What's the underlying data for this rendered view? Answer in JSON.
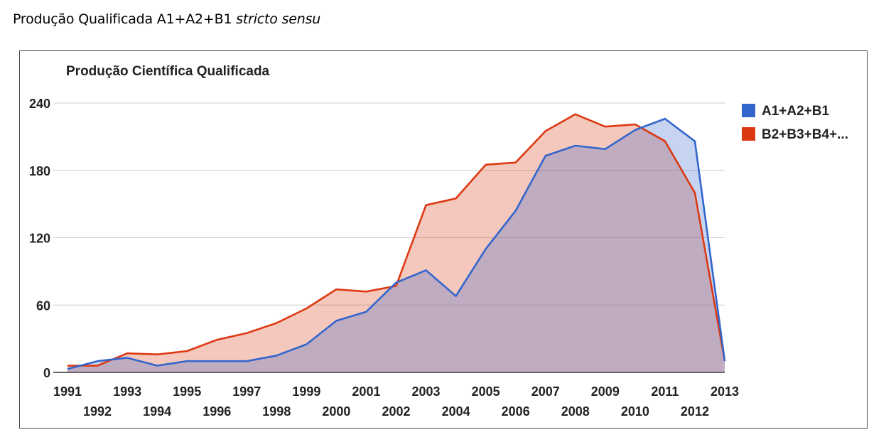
{
  "page": {
    "title_main": "Produção Qualificada A1+A2+B1 ",
    "title_italic": "stricto sensu"
  },
  "colors": {
    "series_a": "#3366cc",
    "series_b": "#dc3912",
    "grid": "#cccccc"
  },
  "chart_data": {
    "type": "area",
    "title": "Produção Científica Qualificada",
    "xlabel": "",
    "ylabel": "",
    "x": [
      1991,
      1992,
      1993,
      1994,
      1995,
      1996,
      1997,
      1998,
      1999,
      2000,
      2001,
      2002,
      2003,
      2004,
      2005,
      2006,
      2007,
      2008,
      2009,
      2010,
      2011,
      2012,
      2013
    ],
    "ylim": [
      0,
      240
    ],
    "yticks": [
      0,
      60,
      120,
      180,
      240
    ],
    "xtick_labels_top": [
      "1991",
      "1993",
      "1995",
      "1997",
      "1999",
      "2001",
      "2003",
      "2005",
      "2007",
      "2009",
      "2011",
      "2013"
    ],
    "xtick_labels_bottom": [
      "1992",
      "1994",
      "1996",
      "1998",
      "2000",
      "2002",
      "2004",
      "2006",
      "2008",
      "2010",
      "2012"
    ],
    "grid": true,
    "legend_position": "right",
    "series": [
      {
        "name": "A1+A2+B1",
        "color": "#3366cc",
        "values": [
          3,
          10,
          13,
          6,
          10,
          10,
          10,
          15,
          25,
          46,
          54,
          80,
          91,
          68,
          110,
          144,
          193,
          202,
          199,
          216,
          226,
          206,
          10
        ]
      },
      {
        "name": "B2+B3+B4+...",
        "color": "#dc3912",
        "values": [
          6,
          6,
          17,
          16,
          19,
          29,
          35,
          44,
          57,
          74,
          72,
          77,
          149,
          155,
          185,
          187,
          215,
          230,
          219,
          221,
          206,
          160,
          10
        ]
      }
    ]
  }
}
